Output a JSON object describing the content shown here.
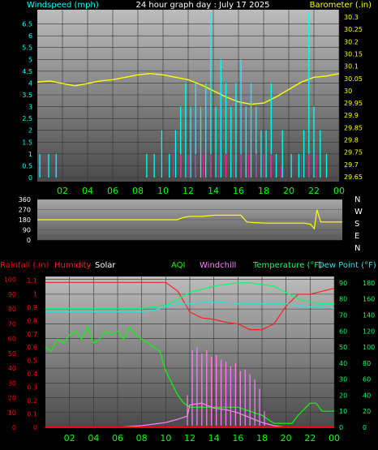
{
  "colors": {
    "wind": "#00ffff",
    "gust": "#ff1493",
    "barometer": "#ffff00",
    "direction": "#ffff00",
    "rain": "#ff0000",
    "humidity": "#ff2020",
    "solar": "#ffffff",
    "aqi": "#00ff00",
    "windchill": "#ff80ff",
    "temperature": "#00ff66",
    "dewpoint": "#33dddd",
    "hour_labels": "#00ff00"
  },
  "chart_data": [
    {
      "type": "line",
      "title": "24 hour graph day : July 17 2025",
      "ylabel_left": "Windspeed (mph)",
      "ylabel_right": "Barometer (.in)",
      "x_ticks": [
        "02",
        "04",
        "06",
        "08",
        "10",
        "12",
        "14",
        "16",
        "18",
        "20",
        "22",
        "00"
      ],
      "y_left_ticks": [
        "0",
        "0.5",
        "1",
        "1.5",
        "2",
        "2.5",
        "3",
        "3.5",
        "4",
        "4.5",
        "5",
        "5.5",
        "6",
        "6.5"
      ],
      "y_right_ticks": [
        "29.65",
        "29.7",
        "29.75",
        "29.8",
        "29.85",
        "29.9",
        "29.95",
        "30",
        "30.05",
        "30.1",
        "30.15",
        "30.2",
        "30.25",
        "30.3"
      ],
      "ylim_left": [
        0,
        7
      ],
      "ylim_right": [
        29.63,
        30.33
      ],
      "series": [
        {
          "key": "barometer",
          "axis": "right",
          "x": [
            0,
            1,
            2,
            3,
            4,
            5,
            6,
            7,
            8,
            9,
            10,
            11,
            12,
            13,
            14,
            15,
            16,
            17,
            18,
            19,
            20,
            21,
            22,
            23,
            24
          ],
          "values": [
            30.035,
            30.04,
            30.03,
            30.02,
            30.03,
            30.04,
            30.045,
            30.055,
            30.065,
            30.07,
            30.065,
            30.055,
            30.045,
            30.025,
            30.0,
            29.975,
            29.955,
            29.945,
            29.95,
            29.975,
            30.005,
            30.035,
            30.055,
            30.06,
            30.07
          ]
        },
        {
          "key": "wind",
          "axis": "left",
          "x": [
            0.2,
            0.9,
            1.5,
            8.7,
            9.3,
            9.9,
            10.5,
            11.0,
            11.4,
            11.8,
            12.2,
            12.6,
            13.0,
            13.4,
            13.8,
            14.2,
            14.6,
            15.0,
            15.4,
            15.8,
            16.2,
            16.6,
            17.0,
            17.4,
            17.8,
            18.2,
            18.6,
            19.0,
            19.5,
            20.2,
            20.8,
            21.2,
            21.6,
            22.0,
            22.5,
            23.0
          ],
          "values": [
            1,
            1,
            1,
            1,
            1,
            2,
            1,
            2,
            3,
            4,
            3,
            4,
            3,
            4,
            7,
            3,
            5,
            4,
            3,
            4,
            5,
            3,
            4,
            3,
            2,
            2,
            4,
            1,
            2,
            1,
            1,
            2,
            7,
            3,
            2,
            1
          ]
        },
        {
          "key": "gust",
          "axis": "left",
          "x": [
            10.8,
            11.4,
            12.0,
            12.6,
            13.2,
            13.8,
            14.4,
            15.0,
            15.6,
            16.2,
            16.8,
            17.4,
            18.0,
            18.6,
            19.4,
            21.0,
            21.6,
            22.2
          ],
          "values": [
            1,
            1,
            1,
            1,
            1,
            1,
            1,
            1,
            1,
            1,
            1,
            1,
            1,
            1,
            0.5,
            1,
            1,
            1
          ]
        }
      ]
    },
    {
      "type": "line",
      "y_left_ticks": [
        "360",
        "270",
        "180",
        "90",
        "0"
      ],
      "y_right_ticks": [
        "N",
        "W",
        "S",
        "E",
        "N"
      ],
      "ylim": [
        0,
        360
      ],
      "series": [
        {
          "key": "direction",
          "x": [
            0,
            2,
            4,
            6,
            8,
            10,
            11,
            11.5,
            12,
            13,
            14,
            15,
            16,
            16.5,
            17,
            18,
            19,
            20,
            21,
            21.5,
            21.8,
            22,
            22.3,
            23,
            24
          ],
          "values": [
            180,
            180,
            180,
            180,
            180,
            180,
            180,
            200,
            210,
            210,
            220,
            220,
            220,
            160,
            155,
            150,
            150,
            150,
            150,
            140,
            100,
            270,
            160,
            160,
            160
          ]
        }
      ]
    },
    {
      "type": "line",
      "legend": [
        "Rainfall (.in)",
        "Humidity",
        "Solar",
        "AQI",
        "Windchill",
        "Temperature (°F)",
        "Dew Point (°F)"
      ],
      "y_hum_ticks": [
        "0",
        "10",
        "20",
        "30",
        "40",
        "50",
        "60",
        "70",
        "80",
        "90",
        "100"
      ],
      "y_rain_ticks": [
        "0",
        "0.1",
        "0.2",
        "0.3",
        "0.4",
        "0.5",
        "0.6",
        "0.7",
        "0.8",
        "0.9",
        "1",
        "1.1"
      ],
      "y_temp_ticks": [
        "0",
        "10",
        "20",
        "30",
        "40",
        "50",
        "60",
        "70",
        "80",
        "90"
      ],
      "y_aqi_ticks": [
        "0",
        "20",
        "40",
        "60",
        "80",
        "100",
        "120",
        "140",
        "160",
        "180"
      ],
      "ylim_humidity": [
        0,
        102
      ],
      "ylim_temp": [
        0,
        94
      ],
      "ylim_aqi": [
        0,
        188
      ],
      "series": [
        {
          "key": "humidity",
          "axis": "humidity",
          "x": [
            0,
            2,
            4,
            6,
            8,
            9,
            10,
            11,
            12,
            13,
            14,
            15,
            16,
            17,
            18,
            19,
            20,
            21,
            22,
            23,
            24
          ],
          "values": [
            98,
            98,
            98,
            98,
            98,
            98,
            98,
            92,
            78,
            74,
            73,
            71,
            70,
            66,
            66,
            70,
            82,
            90,
            90,
            92,
            94
          ]
        },
        {
          "key": "temperature",
          "axis": "temp",
          "x": [
            0,
            2,
            4,
            6,
            8,
            9,
            10,
            11,
            12,
            13,
            14,
            15,
            16,
            17,
            18,
            19,
            20,
            21,
            22,
            23,
            24
          ],
          "values": [
            74,
            74,
            74,
            74,
            74,
            75,
            76,
            80,
            84,
            86,
            88,
            89,
            90,
            90,
            89,
            88,
            84,
            80,
            78,
            77,
            77
          ]
        },
        {
          "key": "dewpoint",
          "axis": "temp",
          "x": [
            0,
            2,
            4,
            6,
            8,
            9,
            10,
            11,
            12,
            13,
            14,
            15,
            16,
            17,
            18,
            19,
            20,
            21,
            22,
            23,
            24
          ],
          "values": [
            72,
            72,
            72,
            72,
            72,
            73,
            75,
            77,
            77,
            78,
            78,
            78,
            77,
            77,
            77,
            77,
            77,
            76,
            75,
            75,
            74
          ]
        },
        {
          "key": "aqi",
          "axis": "aqi",
          "x": [
            0,
            0.5,
            1,
            1.5,
            2,
            2.5,
            3,
            3.5,
            4,
            4.5,
            5,
            5.5,
            6,
            6.5,
            7,
            7.5,
            8,
            8.5,
            9,
            9.5,
            10,
            10.5,
            11,
            11.5,
            12,
            13,
            14,
            15,
            16,
            17,
            18,
            19,
            20,
            20.5,
            21,
            22,
            22.5,
            23,
            24
          ],
          "values": [
            100,
            95,
            110,
            105,
            115,
            120,
            110,
            125,
            105,
            110,
            120,
            115,
            120,
            110,
            125,
            115,
            110,
            105,
            100,
            95,
            70,
            55,
            40,
            30,
            25,
            25,
            25,
            25,
            25,
            20,
            15,
            5,
            5,
            5,
            15,
            30,
            30,
            20,
            20
          ]
        },
        {
          "key": "solar",
          "axis": "aqi",
          "x": [
            0,
            6,
            7,
            8,
            9,
            10,
            11,
            11.8,
            12,
            13,
            14,
            15,
            16,
            17,
            18,
            19,
            20,
            24
          ],
          "values": [
            0,
            0,
            1,
            2,
            4,
            6,
            10,
            14,
            28,
            30,
            24,
            22,
            18,
            12,
            6,
            2,
            0,
            0
          ]
        },
        {
          "key": "windchill",
          "axis": "temp",
          "x": [
            11.8,
            12.2,
            12.6,
            13.0,
            13.4,
            13.8,
            14.2,
            14.6,
            15.0,
            15.4,
            15.8,
            16.2,
            16.6,
            17.0,
            17.4,
            17.8,
            18.2
          ],
          "values": [
            20,
            48,
            50,
            46,
            48,
            44,
            45,
            42,
            41,
            38,
            40,
            35,
            36,
            33,
            30,
            24,
            10
          ]
        },
        {
          "key": "rain",
          "axis": "humidity",
          "x": [
            0,
            24
          ],
          "values": [
            0,
            0
          ]
        }
      ]
    }
  ]
}
